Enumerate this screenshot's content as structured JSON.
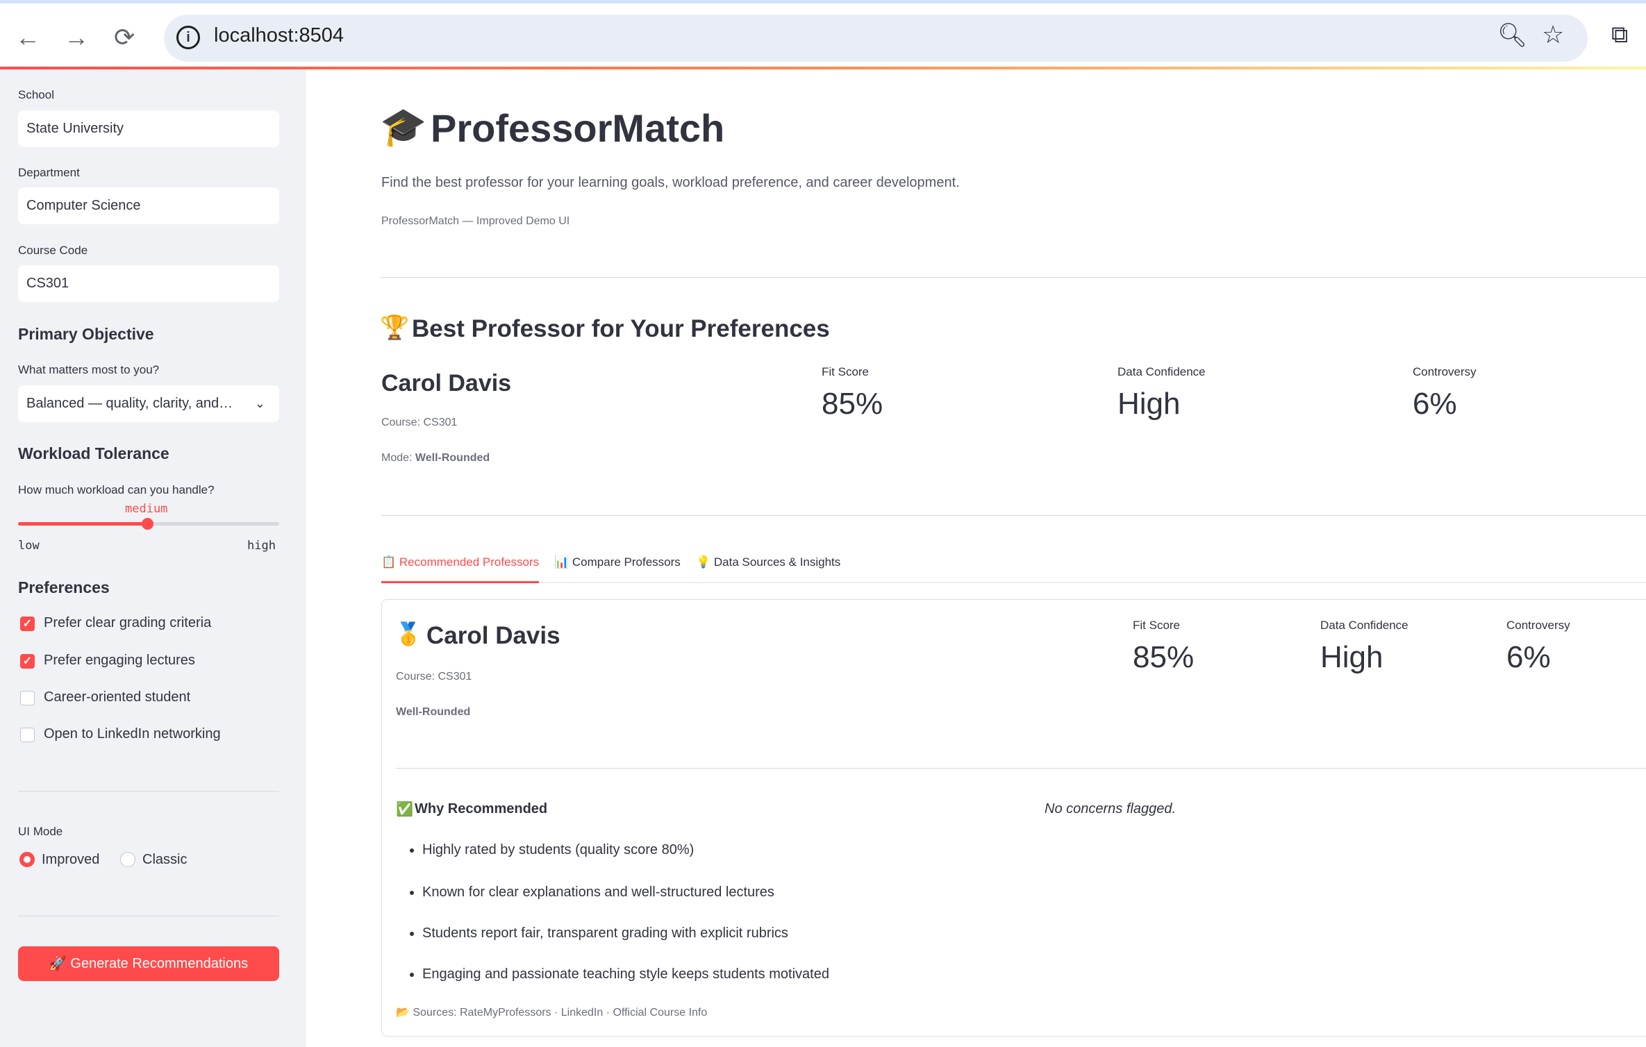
{
  "browser": {
    "url": "localhost:8504"
  },
  "sidebar": {
    "school": {
      "label": "School",
      "value": "State University"
    },
    "department": {
      "label": "Department",
      "value": "Computer Science"
    },
    "course": {
      "label": "Course Code",
      "value": "CS301"
    },
    "objective": {
      "heading": "Primary Objective",
      "label": "What matters most to you?",
      "value": "Balanced — quality, clarity, and…"
    },
    "workload": {
      "heading": "Workload Tolerance",
      "label": "How much workload can you handle?",
      "value": "medium",
      "min": "low",
      "max": "high",
      "fraction": 0.5
    },
    "preferences": {
      "heading": "Preferences",
      "items": [
        {
          "label": "Prefer clear grading criteria",
          "checked": true
        },
        {
          "label": "Prefer engaging lectures",
          "checked": true
        },
        {
          "label": "Career-oriented student",
          "checked": false
        },
        {
          "label": "Open to LinkedIn networking",
          "checked": false
        }
      ]
    },
    "ui_mode": {
      "label": "UI Mode",
      "options": [
        "Improved",
        "Classic"
      ],
      "selected": "Improved"
    },
    "generate_button": "🚀 Generate Recommendations"
  },
  "main": {
    "title": "ProfessorMatch",
    "subtitle": "Find the best professor for your learning goals, workload preference, and career development.",
    "caption": "ProfessorMatch — Improved Demo UI",
    "best": {
      "heading": "Best Professor for Your Preferences",
      "name": "Carol Davis",
      "course": "Course: CS301",
      "mode_label": "Mode: ",
      "mode": "Well-Rounded",
      "metrics": [
        {
          "label": "Fit Score",
          "value": "85%"
        },
        {
          "label": "Data Confidence",
          "value": "High"
        },
        {
          "label": "Controversy",
          "value": "6%"
        }
      ]
    },
    "tabs": [
      "Recommended Professors",
      "Compare Professors",
      "Data Sources & Insights"
    ],
    "card": {
      "name": "Carol Davis",
      "course": "Course: CS301",
      "tag": "Well-Rounded",
      "metrics": [
        {
          "label": "Fit Score",
          "value": "85%"
        },
        {
          "label": "Data Confidence",
          "value": "High"
        },
        {
          "label": "Controversy",
          "value": "6%"
        }
      ],
      "why_heading": "Why Recommended",
      "concerns": "No concerns flagged.",
      "reasons": [
        "Highly rated by students (quality score 80%)",
        "Known for clear explanations and well-structured lectures",
        "Students report fair, transparent grading with explicit rubrics",
        "Engaging and passionate teaching style keeps students motivated"
      ],
      "sources": "Sources: RateMyProfessors · LinkedIn · Official Course Info"
    }
  },
  "colors": {
    "accent": "#ff4b4b",
    "sidebar_bg": "#f0f2f6",
    "text": "#31333f"
  }
}
